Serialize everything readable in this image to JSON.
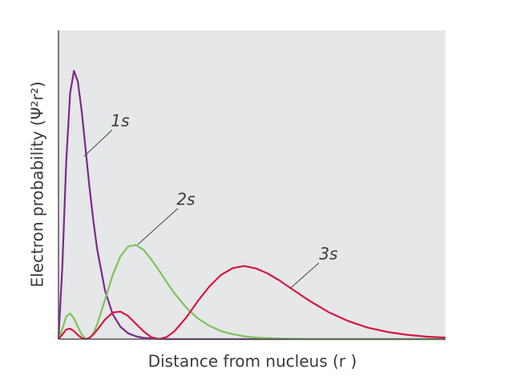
{
  "chart_data": {
    "type": "line",
    "xlabel": "Distance from nucleus (r )",
    "ylabel": "Electron probability (Ψ²r²)",
    "x": [
      0,
      1,
      2,
      3,
      4,
      5,
      6,
      7,
      8,
      9,
      10,
      12,
      14,
      16,
      18,
      20,
      22,
      24,
      26,
      28,
      30,
      33,
      36,
      39,
      42,
      45,
      48,
      51,
      54,
      57,
      60,
      65,
      70,
      75,
      80,
      85,
      90,
      95,
      100
    ],
    "xlim": [
      0,
      100
    ],
    "ylim": [
      0,
      100
    ],
    "series": [
      {
        "name": "1s",
        "color": "#7b2a8a",
        "values": [
          0,
          23.5,
          57.7,
          79.7,
          86.9,
          83.4,
          73.8,
          61.6,
          49.4,
          38.4,
          29.1,
          15.8,
          8.1,
          4.0,
          1.9,
          0.9,
          0.4,
          0.2,
          0.1,
          0,
          0,
          0,
          0,
          0,
          0,
          0,
          0,
          0,
          0,
          0,
          0,
          0,
          0,
          0,
          0,
          0,
          0,
          0,
          0
        ]
      },
      {
        "name": "2s",
        "color": "#7dc35b",
        "values": [
          0,
          3.3,
          7.3,
          8.3,
          6.7,
          4.0,
          1.5,
          0.1,
          0.3,
          1.9,
          4.8,
          12.7,
          20.7,
          26.8,
          30.0,
          30.5,
          28.9,
          25.8,
          22.2,
          18.4,
          14.8,
          10.2,
          6.7,
          4.3,
          2.6,
          1.6,
          0.9,
          0.5,
          0.3,
          0.2,
          0.1,
          0,
          0,
          0,
          0,
          0,
          0,
          0,
          0
        ]
      },
      {
        "name": "3s",
        "color": "#d6173e",
        "values": [
          0,
          1.5,
          3.1,
          3.4,
          2.6,
          1.3,
          0.4,
          0,
          0.4,
          1.5,
          3.0,
          6.3,
          8.6,
          8.9,
          7.5,
          5.0,
          2.5,
          0.6,
          0,
          0.7,
          2.6,
          7.0,
          12.3,
          17.1,
          20.8,
          23.0,
          23.7,
          22.9,
          21.3,
          19.1,
          16.5,
          12.3,
          8.6,
          5.8,
          3.7,
          2.3,
          1.4,
          0.8,
          0.5
        ]
      }
    ]
  }
}
